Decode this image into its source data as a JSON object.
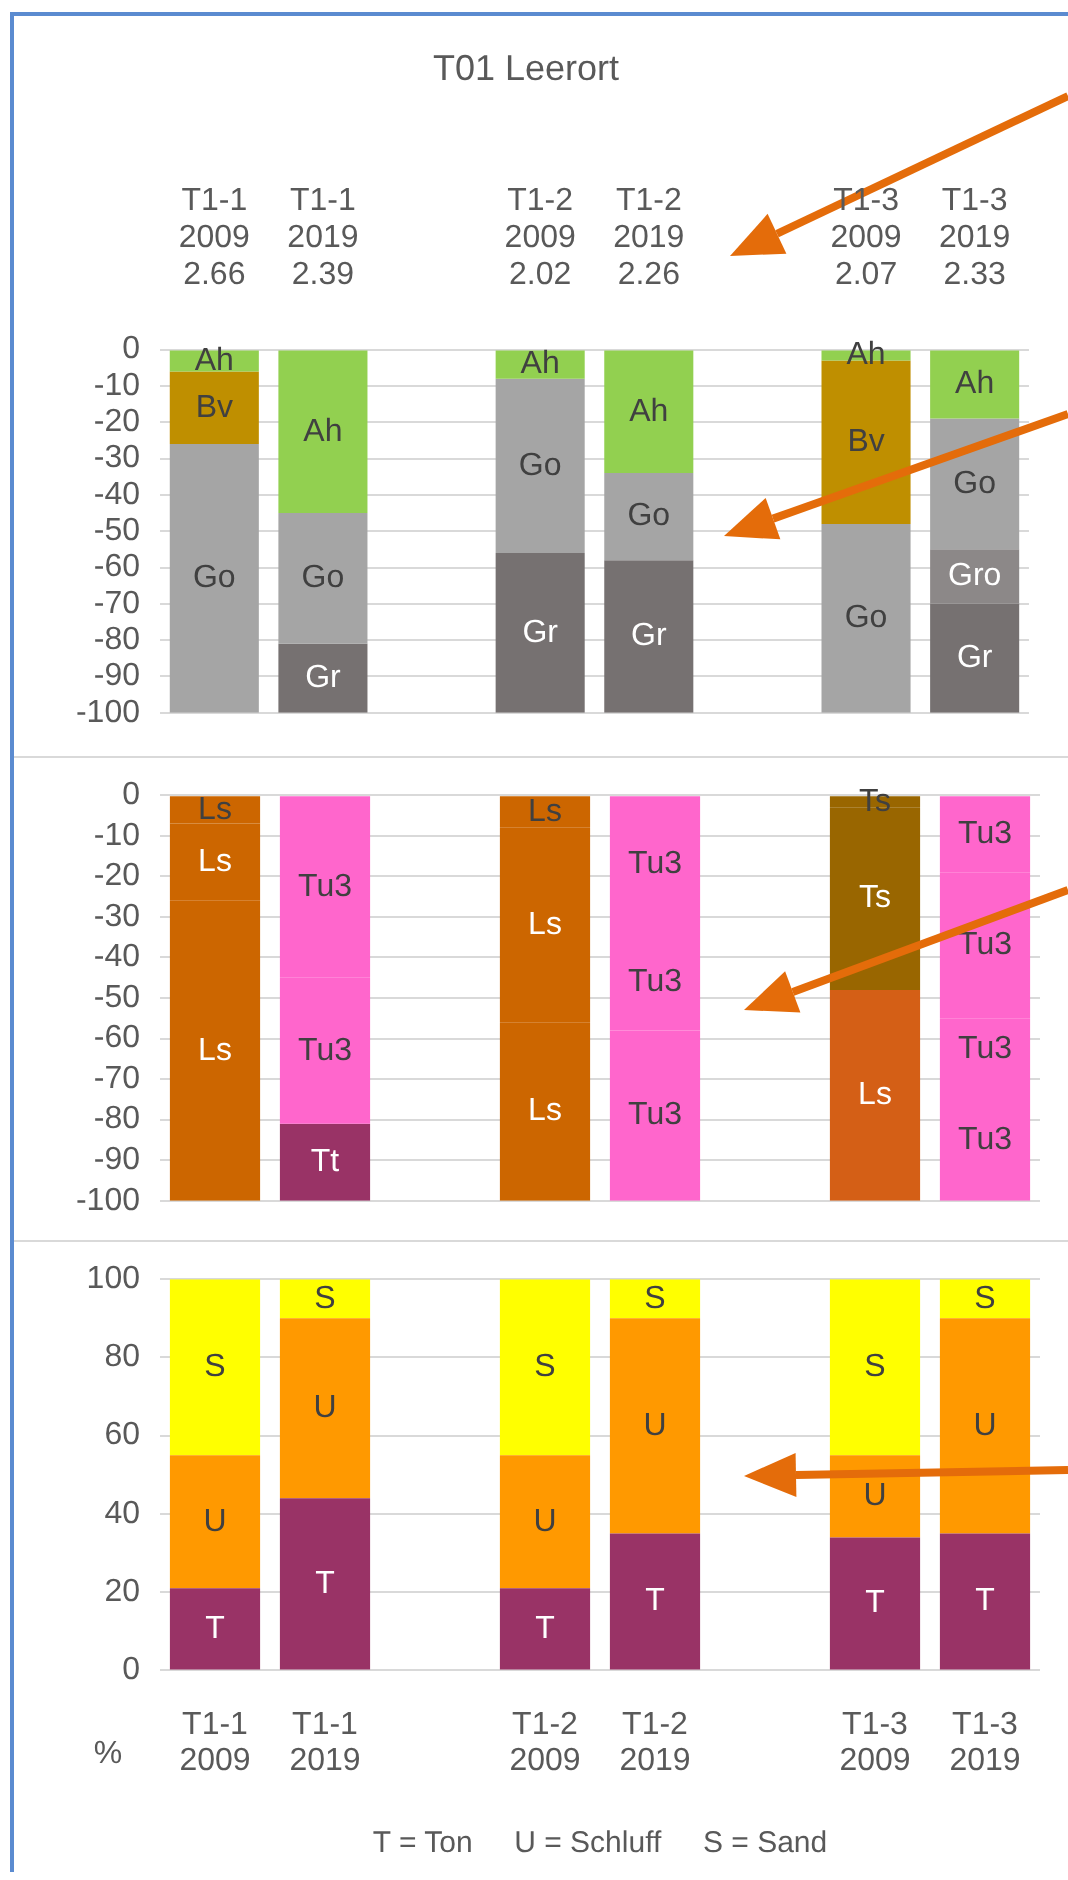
{
  "chart_data": [
    {
      "type": "bar",
      "stacked": true,
      "title": "T01 Leerort",
      "categories": [
        "T1-1\n2009\n2.66",
        "T1-1\n2019\n2.39",
        null,
        "T1-2\n2009\n2.02",
        "T1-2\n2019\n2.26",
        null,
        "T1-3\n2009\n2.07",
        "T1-3\n2019\n2.33"
      ],
      "ylim": [
        -100,
        0
      ],
      "yticks": [
        -100,
        -90,
        -80,
        -70,
        -60,
        -50,
        -40,
        -30,
        -20,
        -10,
        0
      ],
      "grid": "y",
      "series": [
        {
          "values": [
            -6,
            -45,
            null,
            -8,
            -34,
            null,
            -3,
            -19
          ],
          "colors": [
            "#92d050",
            "#92d050",
            "#92d050",
            "#92d050",
            "#92d050",
            "#92d050",
            "#92d050",
            "#92d050"
          ],
          "value_labels": [
            "Ah",
            "Ah",
            null,
            "Ah",
            "Ah",
            null,
            "Ah",
            "Ah"
          ]
        },
        {
          "values": [
            -20,
            -36,
            null,
            -48,
            -24,
            null,
            -45,
            -36
          ],
          "colors": [
            "#bf8f00",
            "#a5a5a5",
            "#a5a5a5",
            "#a5a5a5",
            "#a5a5a5",
            "#a5a5a5",
            "#bf8f00",
            "#a5a5a5"
          ],
          "value_labels": [
            "Bv",
            "Go",
            null,
            "Go",
            "Go",
            null,
            "Bv",
            "Go"
          ]
        },
        {
          "values": [
            -74,
            -19,
            null,
            -44,
            -42,
            null,
            -52,
            -15
          ],
          "colors": [
            "#a5a5a5",
            "#767171",
            "#767171",
            "#767171",
            "#767171",
            "#767171",
            "#a5a5a5",
            "#8c8888"
          ],
          "value_labels": [
            "Go",
            "Gr",
            null,
            "Gr",
            "Gr",
            null,
            "Go",
            "Gro"
          ]
        },
        {
          "values": [
            null,
            null,
            null,
            null,
            null,
            null,
            null,
            -30
          ],
          "colors": [
            "#767171",
            "#767171",
            "#767171",
            "#767171",
            "#767171",
            "#767171",
            "#767171",
            "#767171"
          ],
          "value_labels": [
            null,
            null,
            null,
            null,
            null,
            null,
            null,
            "Gr"
          ]
        }
      ]
    },
    {
      "type": "bar",
      "stacked": true,
      "categories": [
        null,
        null,
        null,
        null,
        null,
        null,
        null,
        null
      ],
      "tick_labels": "y",
      "ylim": [
        -100,
        0
      ],
      "yticks": [
        -100,
        -90,
        -80,
        -70,
        -60,
        -50,
        -40,
        -30,
        -20,
        -10,
        0
      ],
      "grid": "y",
      "series": [
        {
          "values": [
            -7,
            -45,
            null,
            -8,
            -34,
            null,
            -3,
            -19
          ],
          "colors": [
            "#cc6600",
            "#ff66cc",
            "#cc6600",
            "#cc6600",
            "#ff66cc",
            "#cc6600",
            "#996600",
            "#ff66cc"
          ],
          "value_labels": [
            "Ls",
            "Tu3",
            null,
            "Ls",
            "Tu3",
            null,
            "Ts",
            "Tu3"
          ]
        },
        {
          "values": [
            -19,
            -36,
            null,
            -48,
            -24,
            null,
            -45,
            -36
          ],
          "colors": [
            "#cc6600",
            "#ff66cc",
            "#cc6600",
            "#cc6600",
            "#ff66cc",
            "#cc6600",
            "#996600",
            "#ff66cc"
          ],
          "value_labels": [
            "Ls",
            "Tu3",
            null,
            "Ls",
            "Tu3",
            null,
            "Ts",
            "Tu3"
          ]
        },
        {
          "values": [
            -74,
            -19,
            null,
            -44,
            -42,
            null,
            -52,
            -15
          ],
          "colors": [
            "#cc6600",
            "#993366",
            "#cc6600",
            "#cc6600",
            "#ff66cc",
            "#cc6600",
            "#d45f16",
            "#ff66cc"
          ],
          "value_labels": [
            "Ls",
            "Tt",
            null,
            "Ls",
            "Tu3",
            null,
            "Ls",
            "Tu3"
          ]
        },
        {
          "values": [
            null,
            null,
            null,
            null,
            null,
            null,
            null,
            -30
          ],
          "colors": [
            "#ff66cc",
            "#ff66cc",
            "#ff66cc",
            "#ff66cc",
            "#ff66cc",
            "#ff66cc",
            "#ff66cc",
            "#ff66cc"
          ],
          "value_labels": [
            null,
            null,
            null,
            null,
            null,
            null,
            null,
            "Tu3"
          ]
        }
      ]
    },
    {
      "type": "bar",
      "stacked": true,
      "categories": [
        "T1-1\n2009",
        "T1-1\n2019",
        null,
        "T1-2\n2009",
        "T1-2\n2019",
        null,
        "T1-3\n2009",
        "T1-3\n2019"
      ],
      "ylabel": "%",
      "ylim": [
        0,
        100
      ],
      "yticks": [
        0,
        20,
        40,
        60,
        80,
        100
      ],
      "grid": "y",
      "annotations": [
        "T = Ton     U = Schluff     S = Sand"
      ],
      "series": [
        {
          "values": [
            21,
            44,
            null,
            21,
            35,
            null,
            34,
            35
          ],
          "color": "#993366",
          "value_labels": [
            "T",
            "T",
            null,
            "T",
            "T",
            null,
            "T",
            "T"
          ]
        },
        {
          "values": [
            34,
            46,
            null,
            34,
            55,
            null,
            21,
            55
          ],
          "color": "#ff9900",
          "value_labels": [
            "U",
            "U",
            null,
            "U",
            "U",
            null,
            "U",
            "U"
          ]
        },
        {
          "values": [
            45,
            10,
            null,
            45,
            10,
            null,
            45,
            10
          ],
          "color": "#ffff00",
          "value_labels": [
            "S",
            "S",
            null,
            "S",
            "S",
            null,
            "S",
            "S"
          ]
        }
      ]
    }
  ]
}
